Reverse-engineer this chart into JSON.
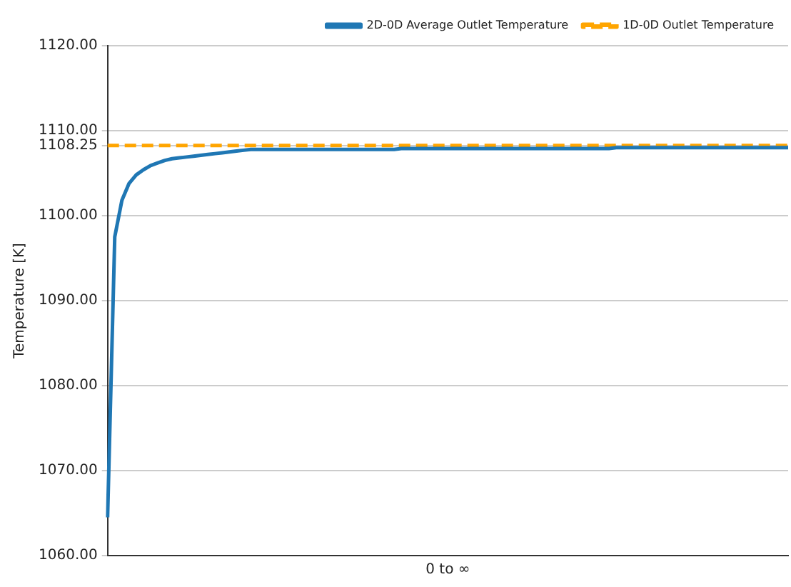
{
  "chart_data": {
    "type": "line",
    "xlabel": "0 to ∞",
    "ylabel": "Temperature [K]",
    "categories": [
      null,
      null,
      null,
      null,
      null,
      null,
      null,
      null,
      null,
      null,
      null,
      null,
      null,
      null,
      null,
      null,
      null,
      null,
      null,
      null,
      null,
      null,
      null,
      null,
      null,
      null,
      null,
      null,
      null,
      null,
      null,
      null,
      null,
      null,
      null,
      null,
      null,
      null,
      null,
      null,
      null,
      null,
      null,
      null,
      null,
      null,
      null,
      null,
      null,
      null,
      null,
      null,
      null,
      null,
      null,
      null,
      null,
      null,
      null,
      null,
      null,
      null,
      null,
      null,
      null,
      null,
      null,
      null,
      null,
      null,
      null,
      null,
      null,
      null,
      null,
      null,
      null,
      null,
      null,
      null,
      null,
      null,
      null,
      null,
      null,
      null,
      null,
      null,
      null,
      null,
      null,
      null,
      null,
      null,
      null,
      null
    ],
    "series": [
      {
        "name": "2D-0D Average Outlet Temperature",
        "color": "#1f77b4",
        "line_style": "solid",
        "values": [
          1064.5,
          1097.5,
          1101.8,
          1103.8,
          1104.8,
          1105.4,
          1105.9,
          1106.2,
          1106.5,
          1106.7,
          1106.8,
          1106.9,
          1107.0,
          1107.1,
          1107.2,
          1107.3,
          1107.4,
          1107.5,
          1107.6,
          1107.7,
          1107.8,
          1107.8,
          1107.8,
          1107.8,
          1107.8,
          1107.8,
          1107.8,
          1107.8,
          1107.8,
          1107.8,
          1107.8,
          1107.8,
          1107.8,
          1107.8,
          1107.8,
          1107.8,
          1107.8,
          1107.8,
          1107.8,
          1107.8,
          1107.8,
          1107.9,
          1107.9,
          1107.9,
          1107.9,
          1107.9,
          1107.9,
          1107.9,
          1107.9,
          1107.9,
          1107.9,
          1107.9,
          1107.9,
          1107.9,
          1107.9,
          1107.9,
          1107.9,
          1107.9,
          1107.9,
          1107.9,
          1107.9,
          1107.9,
          1107.9,
          1107.9,
          1107.9,
          1107.9,
          1107.9,
          1107.9,
          1107.9,
          1107.9,
          1107.9,
          1108.0,
          1108.0,
          1108.0,
          1108.0,
          1108.0,
          1108.0,
          1108.0,
          1108.0,
          1108.0,
          1108.0,
          1108.0,
          1108.0,
          1108.0,
          1108.0,
          1108.0,
          1108.0,
          1108.0,
          1108.0,
          1108.0,
          1108.0,
          1108.0,
          1108.0,
          1108.0,
          1108.0,
          1108.0
        ]
      },
      {
        "name": "1D-0D Outlet Temperature",
        "color": "#ffa500",
        "line_style": "dashed",
        "values": [
          1108.25,
          1108.25,
          1108.25,
          1108.25,
          1108.25,
          1108.25,
          1108.25,
          1108.25,
          1108.25,
          1108.25,
          1108.25,
          1108.25,
          1108.25,
          1108.25,
          1108.25,
          1108.25,
          1108.25,
          1108.25,
          1108.25,
          1108.25,
          1108.25,
          1108.25,
          1108.25,
          1108.25,
          1108.25,
          1108.25,
          1108.25,
          1108.25,
          1108.25,
          1108.25,
          1108.25,
          1108.25,
          1108.25,
          1108.25,
          1108.25,
          1108.25,
          1108.25,
          1108.25,
          1108.25,
          1108.25,
          1108.25,
          1108.25,
          1108.25,
          1108.25,
          1108.25,
          1108.25,
          1108.25,
          1108.25,
          1108.25,
          1108.25,
          1108.25,
          1108.25,
          1108.25,
          1108.25,
          1108.25,
          1108.25,
          1108.25,
          1108.25,
          1108.25,
          1108.25,
          1108.25,
          1108.25,
          1108.25,
          1108.25,
          1108.25,
          1108.25,
          1108.25,
          1108.25,
          1108.25,
          1108.25,
          1108.25,
          1108.25,
          1108.25,
          1108.25,
          1108.25,
          1108.25,
          1108.25,
          1108.25,
          1108.25,
          1108.25,
          1108.25,
          1108.25,
          1108.25,
          1108.25,
          1108.25,
          1108.25,
          1108.25,
          1108.25,
          1108.25,
          1108.25,
          1108.25,
          1108.25,
          1108.25,
          1108.25,
          1108.25,
          1108.25
        ]
      }
    ],
    "ylim": [
      1060,
      1120
    ],
    "yticks": [
      {
        "value": 1060,
        "label": "1060.00"
      },
      {
        "value": 1070,
        "label": "1070.00"
      },
      {
        "value": 1080,
        "label": "1080.00"
      },
      {
        "value": 1090,
        "label": "1090.00"
      },
      {
        "value": 1100,
        "label": "1100.00"
      },
      {
        "value": 1108.25,
        "label": "1108.25"
      },
      {
        "value": 1110,
        "label": "1110.00"
      },
      {
        "value": 1120,
        "label": "1120.00"
      }
    ],
    "grid": "y",
    "legend": "top right",
    "marker": "none",
    "tick_labels": "y"
  }
}
